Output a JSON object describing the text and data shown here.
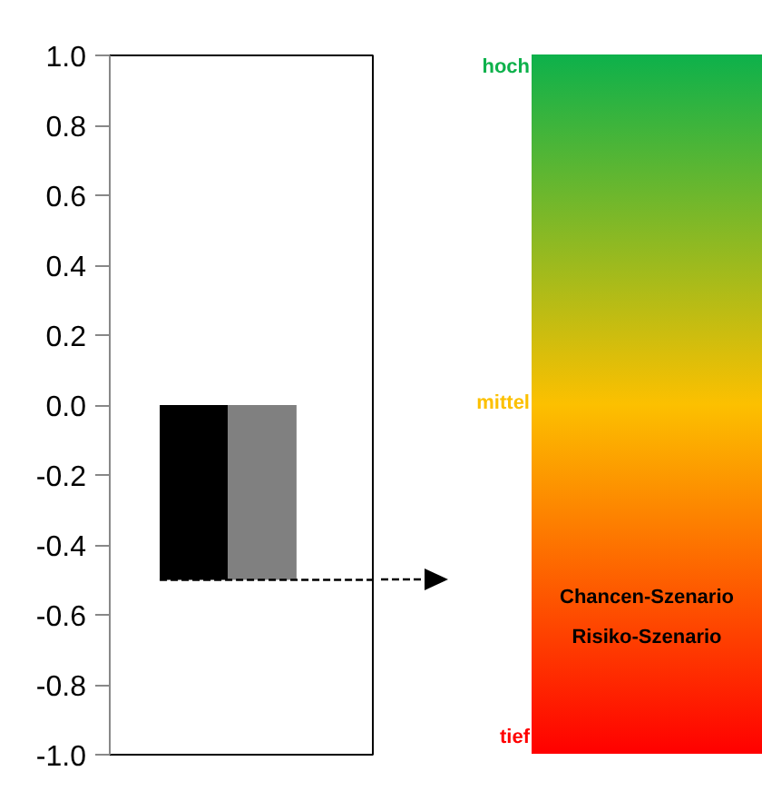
{
  "chart_data": [
    {
      "type": "bar",
      "categories": [
        null
      ],
      "series": [
        {
          "color": "#000000",
          "values": [
            -0.5
          ]
        },
        {
          "color": "#808080",
          "values": [
            -0.5
          ]
        }
      ],
      "ylim": [
        -1,
        1
      ],
      "yticks": [
        {
          "value": -1,
          "label": "-1.0"
        },
        {
          "value": -0.8,
          "label": "-0.8"
        },
        {
          "value": -0.6,
          "label": "-0.6"
        },
        {
          "value": -0.4,
          "label": "-0.4"
        },
        {
          "value": -0.2,
          "label": "-0.2"
        },
        {
          "value": 0,
          "label": "0.0"
        },
        {
          "value": 0.2,
          "label": "0.2"
        },
        {
          "value": 0.4,
          "label": "0.4"
        },
        {
          "value": 0.6,
          "label": "0.6"
        },
        {
          "value": 0.8,
          "label": "0.8"
        },
        {
          "value": 1,
          "label": "1.0"
        }
      ],
      "ref_lines": [
        {
          "axis": "y",
          "value": -0.5,
          "line_style": "dashed",
          "color": "#000000"
        }
      ],
      "grid": false
    },
    {
      "type": "other",
      "annotations": [
        "hoch",
        "mittel",
        "tief",
        "Chancen-Szenario",
        "Risiko-Szenario"
      ],
      "colors": [
        "#0db14b",
        "#fcc000",
        "#ff0000"
      ]
    }
  ]
}
